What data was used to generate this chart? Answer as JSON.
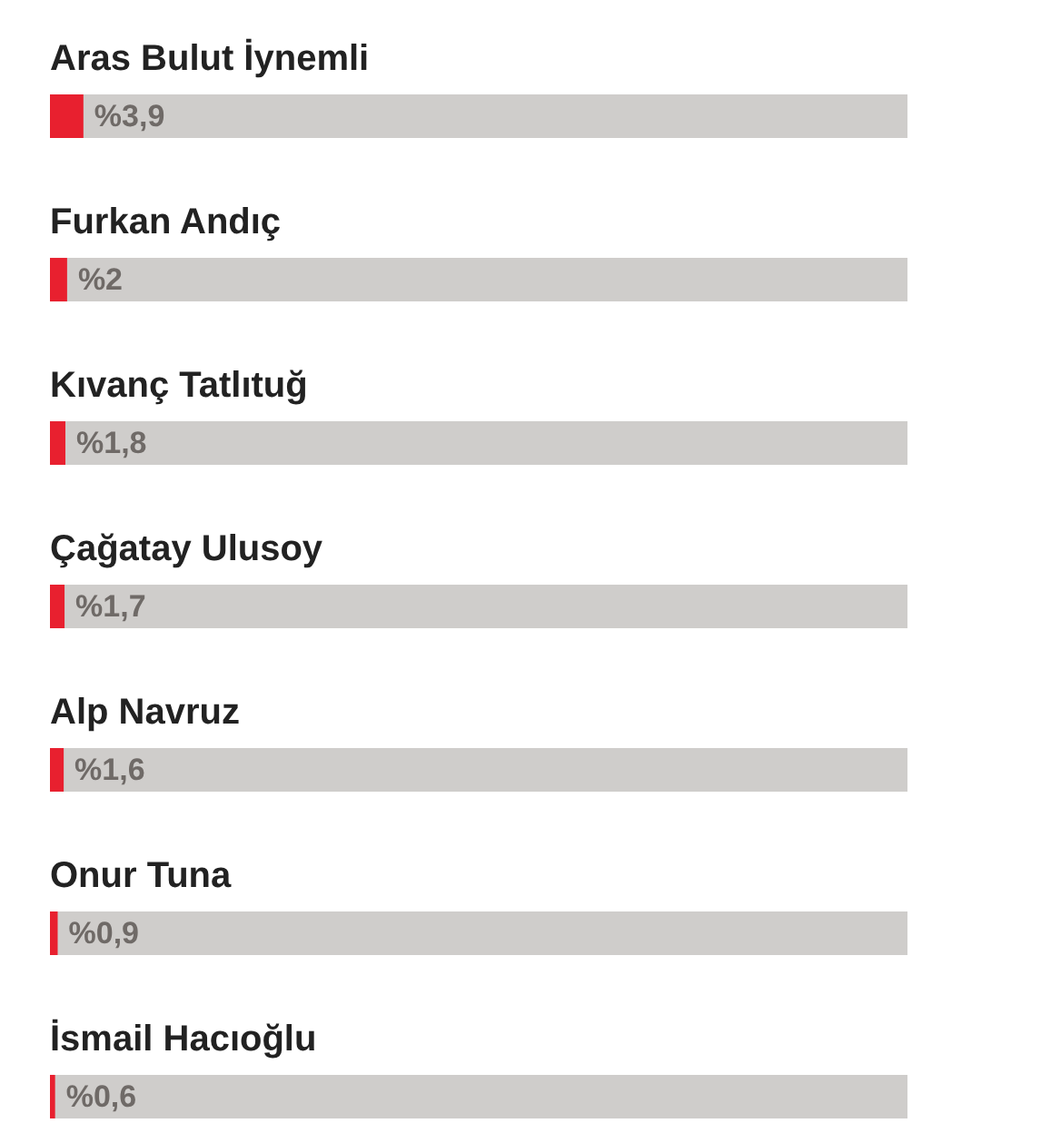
{
  "chart_data": {
    "type": "bar",
    "orientation": "horizontal",
    "xlim": [
      0,
      100
    ],
    "tick_labels": false,
    "grid": false,
    "categories": [
      "Aras Bulut İynemli",
      "Furkan Andıç",
      "Kıvanç Tatlıtuğ",
      "Çağatay Ulusoy",
      "Alp Navruz",
      "Onur Tuna",
      "İsmail Hacıoğlu"
    ],
    "series": [
      {
        "color": "#e8202f",
        "values": [
          3.9,
          2,
          1.8,
          1.7,
          1.6,
          0.9,
          0.6
        ],
        "value_labels": [
          "%3,9",
          "%2",
          "%1,8",
          "%1,7",
          "%1,6",
          "%0,9",
          "%0,6"
        ]
      }
    ]
  }
}
